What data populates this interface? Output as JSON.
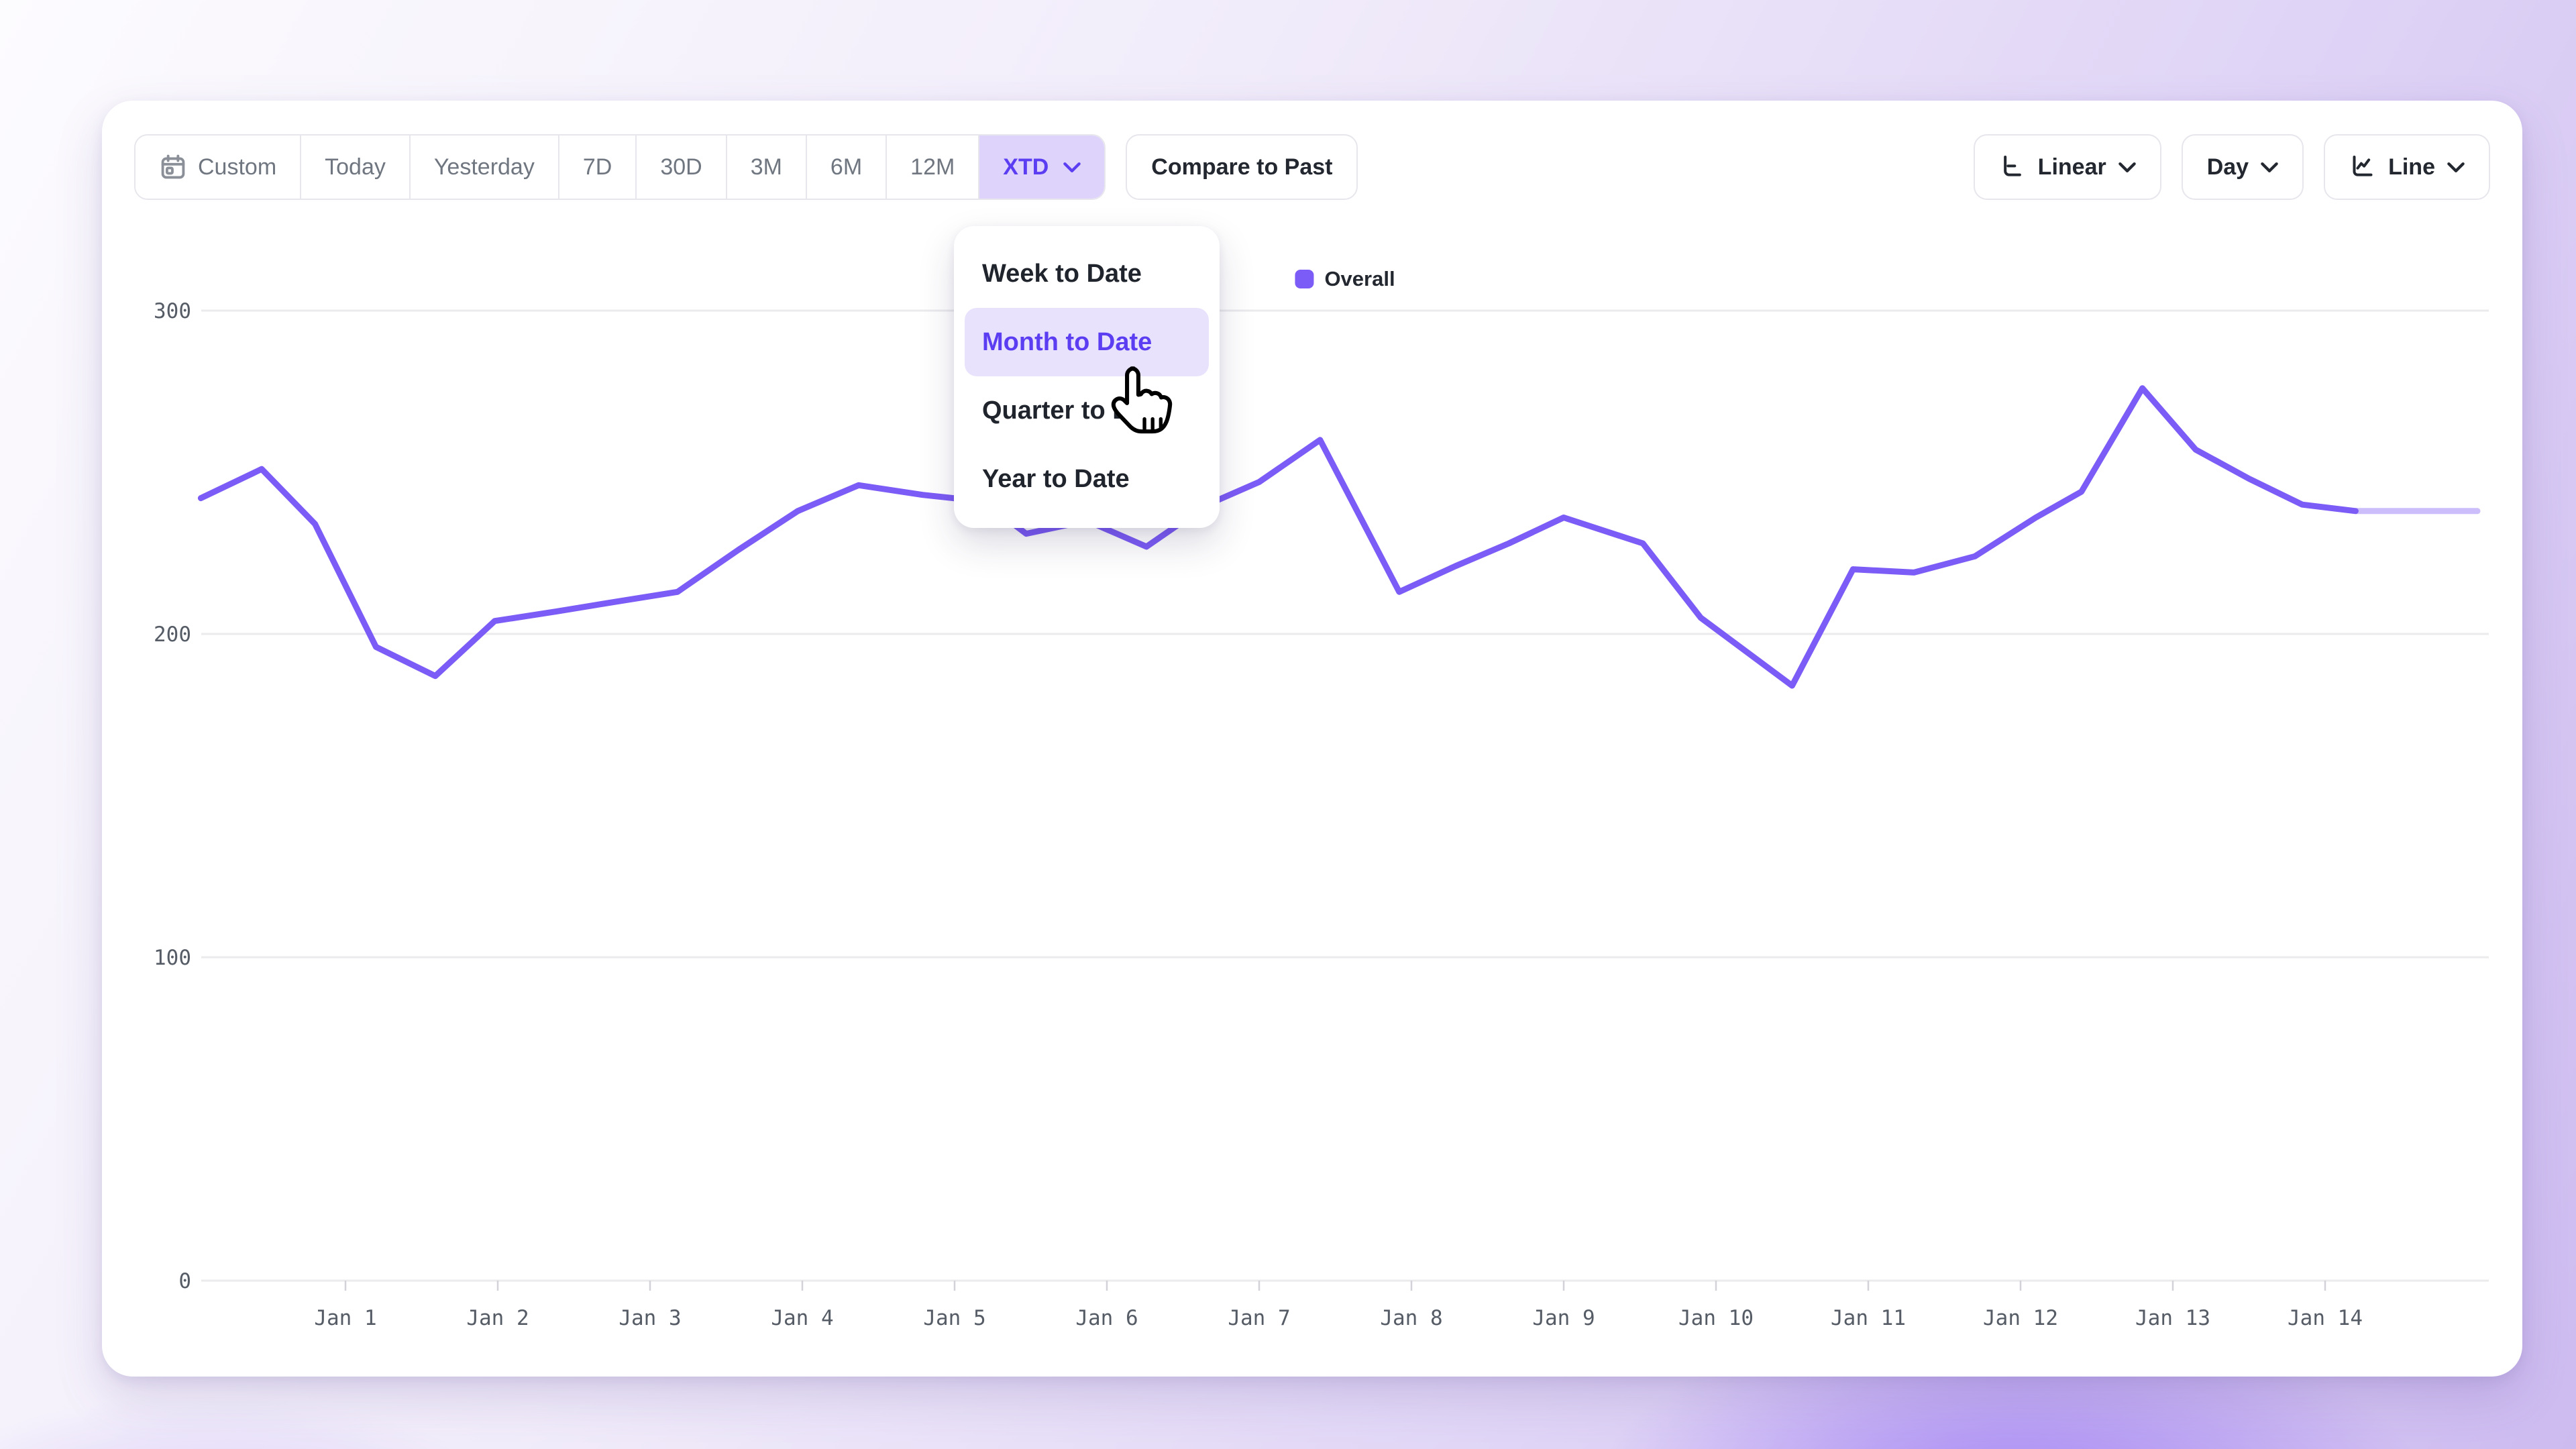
{
  "toolbar": {
    "range_buttons": [
      {
        "id": "custom",
        "label": "Custom",
        "icon": "calendar-icon",
        "active": false,
        "has_chevron": false
      },
      {
        "id": "today",
        "label": "Today",
        "active": false,
        "has_chevron": false
      },
      {
        "id": "yesterday",
        "label": "Yesterday",
        "active": false,
        "has_chevron": false
      },
      {
        "id": "7d",
        "label": "7D",
        "active": false,
        "has_chevron": false
      },
      {
        "id": "30d",
        "label": "30D",
        "active": false,
        "has_chevron": false
      },
      {
        "id": "3m",
        "label": "3M",
        "active": false,
        "has_chevron": false
      },
      {
        "id": "6m",
        "label": "6M",
        "active": false,
        "has_chevron": false
      },
      {
        "id": "12m",
        "label": "12M",
        "active": false,
        "has_chevron": false
      },
      {
        "id": "xtd",
        "label": "XTD",
        "active": true,
        "has_chevron": true
      }
    ],
    "compare_label": "Compare to Past",
    "scale_dropdown": {
      "label": "Linear",
      "icon": "axis-linear-icon"
    },
    "granularity_dropdown": {
      "label": "Day"
    },
    "chart_type_dropdown": {
      "label": "Line",
      "icon": "line-chart-icon"
    }
  },
  "dropdown_menu": {
    "items": [
      {
        "label": "Week to Date",
        "selected": false
      },
      {
        "label": "Month to Date",
        "selected": true
      },
      {
        "label": "Quarter to Date",
        "selected": false
      },
      {
        "label": "Year to Date",
        "selected": false
      }
    ]
  },
  "legend": {
    "series": [
      {
        "label": "Overall",
        "color": "#7c5cf6"
      }
    ]
  },
  "chart_data": {
    "type": "line",
    "title": "",
    "xlabel": "",
    "ylabel": "",
    "x_tick_labels": [
      "Jan 1",
      "Jan 2",
      "Jan 3",
      "Jan 4",
      "Jan 5",
      "Jan 6",
      "Jan 7",
      "Jan 8",
      "Jan 9",
      "Jan 10",
      "Jan 11",
      "Jan 12",
      "Jan 13",
      "Jan 14"
    ],
    "y_ticks": [
      0,
      100,
      200,
      300
    ],
    "ylim": [
      0,
      310
    ],
    "grid": "horizontal-only",
    "legend_position": "top-center",
    "series": [
      {
        "name": "Overall",
        "color": "#7c5cf6",
        "partial_from_day": 14.2,
        "points": [
          [
            0.05,
            242
          ],
          [
            0.45,
            251
          ],
          [
            0.8,
            234
          ],
          [
            1.2,
            196
          ],
          [
            1.59,
            187
          ],
          [
            1.98,
            204
          ],
          [
            2.39,
            207
          ],
          [
            2.78,
            210
          ],
          [
            3.18,
            213
          ],
          [
            3.58,
            226
          ],
          [
            3.97,
            238
          ],
          [
            4.37,
            246
          ],
          [
            4.79,
            243
          ],
          [
            5.19,
            241
          ],
          [
            5.47,
            231
          ],
          [
            5.87,
            235
          ],
          [
            6.26,
            227
          ],
          [
            6.66,
            240
          ],
          [
            7.0,
            247
          ],
          [
            7.4,
            260
          ],
          [
            7.92,
            213
          ],
          [
            8.29,
            221
          ],
          [
            8.64,
            228
          ],
          [
            9.0,
            236
          ],
          [
            9.52,
            228
          ],
          [
            9.9,
            205
          ],
          [
            10.5,
            184
          ],
          [
            10.9,
            220
          ],
          [
            11.3,
            219
          ],
          [
            11.7,
            224
          ],
          [
            12.1,
            236
          ],
          [
            12.4,
            244
          ],
          [
            12.8,
            276
          ],
          [
            13.15,
            257
          ],
          [
            13.5,
            248
          ],
          [
            13.85,
            240
          ],
          [
            14.2,
            238
          ],
          [
            15.0,
            238
          ]
        ]
      }
    ]
  },
  "colors": {
    "accent": "#7c5cf6",
    "accent_text": "#5b3df2",
    "accent_soft_bg": "#ded4fb",
    "menu_highlight_bg": "#e9e2fc",
    "inactive_text": "#6f7680",
    "dark_text": "#23272f",
    "gridline": "#ebebee",
    "axis_text": "#565c66",
    "button_border": "#e7e6ec"
  }
}
